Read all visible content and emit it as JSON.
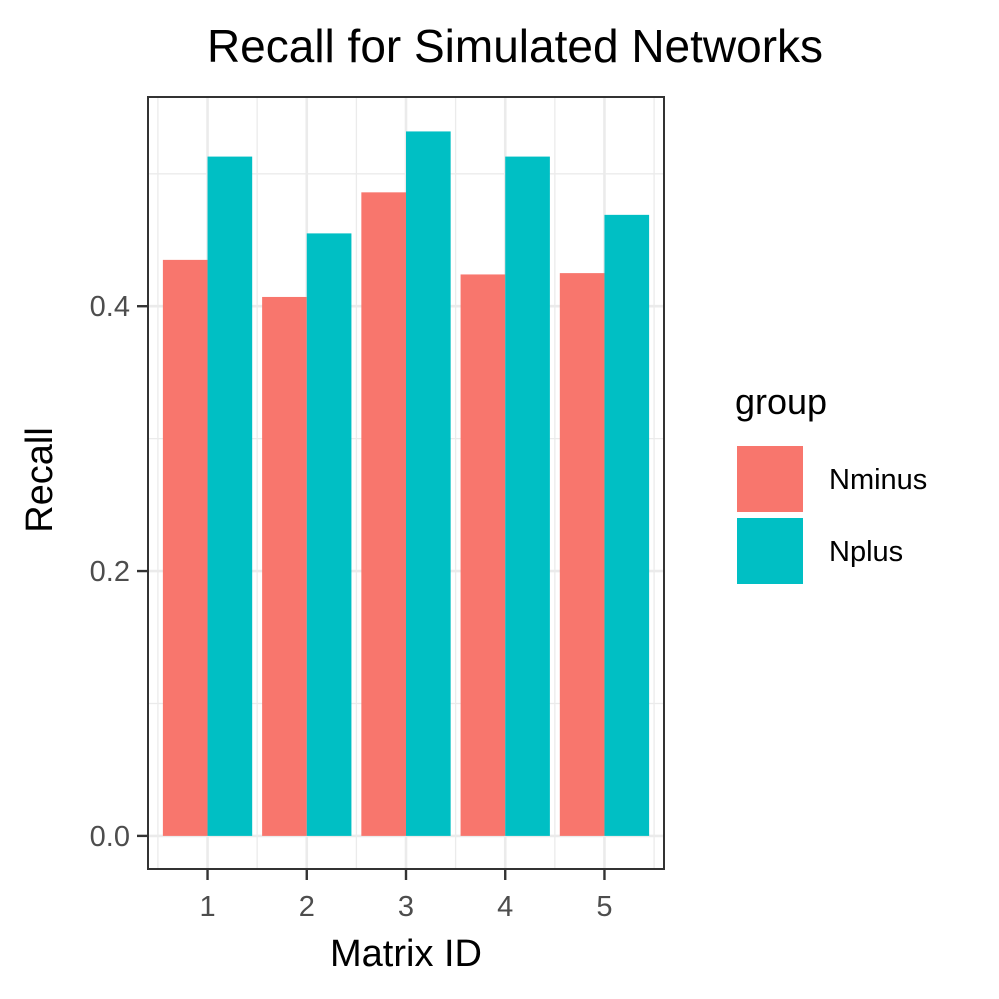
{
  "chart_data": {
    "type": "bar",
    "title": "Recall for Simulated Networks",
    "xlabel": "Matrix ID",
    "ylabel": "Recall",
    "categories": [
      "1",
      "2",
      "3",
      "4",
      "5"
    ],
    "series": [
      {
        "name": "Nminus",
        "color": "#F8766D",
        "values": [
          0.435,
          0.407,
          0.486,
          0.424,
          0.425
        ]
      },
      {
        "name": "Nplus",
        "color": "#00BFC4",
        "values": [
          0.513,
          0.455,
          0.532,
          0.513,
          0.469
        ]
      }
    ],
    "ylim": [
      -0.025,
      0.558
    ],
    "yticks": [
      0.0,
      0.2,
      0.4
    ],
    "ytick_labels": [
      "0.0",
      "0.2",
      "0.4"
    ],
    "grid": true,
    "legend": {
      "title": "group",
      "placement": "right"
    }
  }
}
